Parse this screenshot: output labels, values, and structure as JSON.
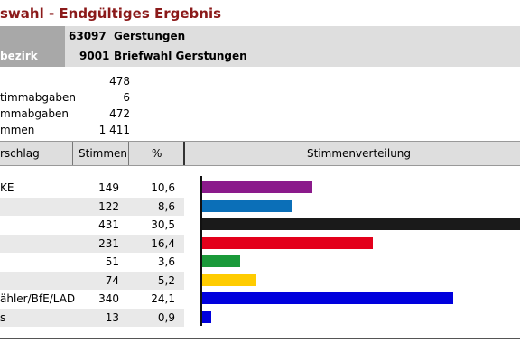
{
  "title": "swahl - Endgültiges Ergebnis",
  "header": {
    "left_label": "bezirk",
    "row1": {
      "code": "63097",
      "name": "Gerstungen"
    },
    "row2": {
      "code": "9001",
      "name": "Briefwahl Gerstungen"
    }
  },
  "stats": [
    {
      "label": "",
      "value": "478"
    },
    {
      "label": "timmabgaben",
      "value": "6"
    },
    {
      "label": "mmabgaben",
      "value": "472"
    },
    {
      "label": "mmen",
      "value": "1 411"
    }
  ],
  "table": {
    "headers": {
      "party": "rschlag",
      "votes": "Stimmen",
      "pct": "%",
      "dist": "Stimmenverteilung"
    },
    "rows": [
      {
        "party": "KE",
        "votes": "149",
        "pct": "10,6",
        "pct_value": 10.6,
        "color": "#8b1a8b"
      },
      {
        "party": "",
        "votes": "122",
        "pct": "8,6",
        "pct_value": 8.6,
        "color": "#0b6fb8"
      },
      {
        "party": "",
        "votes": "431",
        "pct": "30,5",
        "pct_value": 30.5,
        "color": "#1a1a1a"
      },
      {
        "party": "",
        "votes": "231",
        "pct": "16,4",
        "pct_value": 16.4,
        "color": "#e3001b"
      },
      {
        "party": "",
        "votes": "51",
        "pct": "3,6",
        "pct_value": 3.6,
        "color": "#1a9a3a"
      },
      {
        "party": "",
        "votes": "74",
        "pct": "5,2",
        "pct_value": 5.2,
        "color": "#ffcc00"
      },
      {
        "party": "ähler/BfE/LAD",
        "votes": "340",
        "pct": "24,1",
        "pct_value": 24.1,
        "color": "#0000dd"
      },
      {
        "party": "s",
        "votes": "13",
        "pct": "0,9",
        "pct_value": 0.9,
        "color": "#0000dd"
      }
    ]
  }
}
